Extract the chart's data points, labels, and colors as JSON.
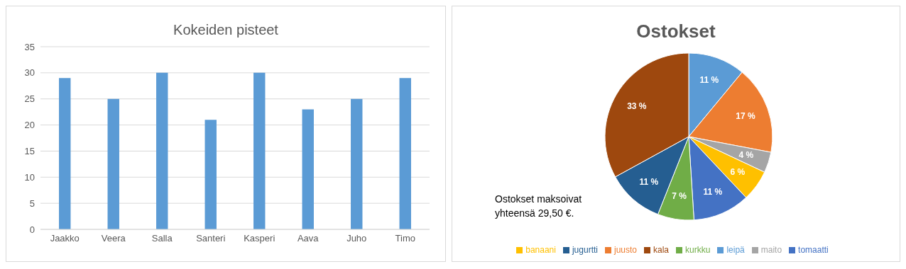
{
  "chart_data": [
    {
      "type": "bar",
      "title": "Kokeiden pisteet",
      "categories": [
        "Jaakko",
        "Veera",
        "Salla",
        "Santeri",
        "Kasperi",
        "Aava",
        "Juho",
        "Timo"
      ],
      "values": [
        29,
        25,
        30,
        21,
        30,
        23,
        25,
        29
      ],
      "color": "#5b9bd5",
      "ylim": [
        0,
        35
      ],
      "yticks": [
        0,
        5,
        10,
        15,
        20,
        25,
        30,
        35
      ],
      "grid": "y"
    },
    {
      "type": "pie",
      "title": "Ostokset",
      "categories": [
        "leipä",
        "juusto",
        "maito",
        "banaani",
        "tomaatti",
        "kurkku",
        "jugurtti",
        "kala"
      ],
      "values": [
        11,
        17,
        4,
        6,
        11,
        7,
        11,
        33
      ],
      "colors": [
        "#5b9bd5",
        "#ed7d31",
        "#a5a5a5",
        "#ffc000",
        "#4472c4",
        "#70ad47",
        "#255e91",
        "#9e480e"
      ],
      "value_labels": [
        "11 %",
        "17 %",
        "4 %",
        "6 %",
        "11 %",
        "7 %",
        "11 %",
        "33 %"
      ],
      "legend": "bottom",
      "annotations": [
        "Ostokset maksoivat yhteensä 29,50 €."
      ]
    }
  ]
}
